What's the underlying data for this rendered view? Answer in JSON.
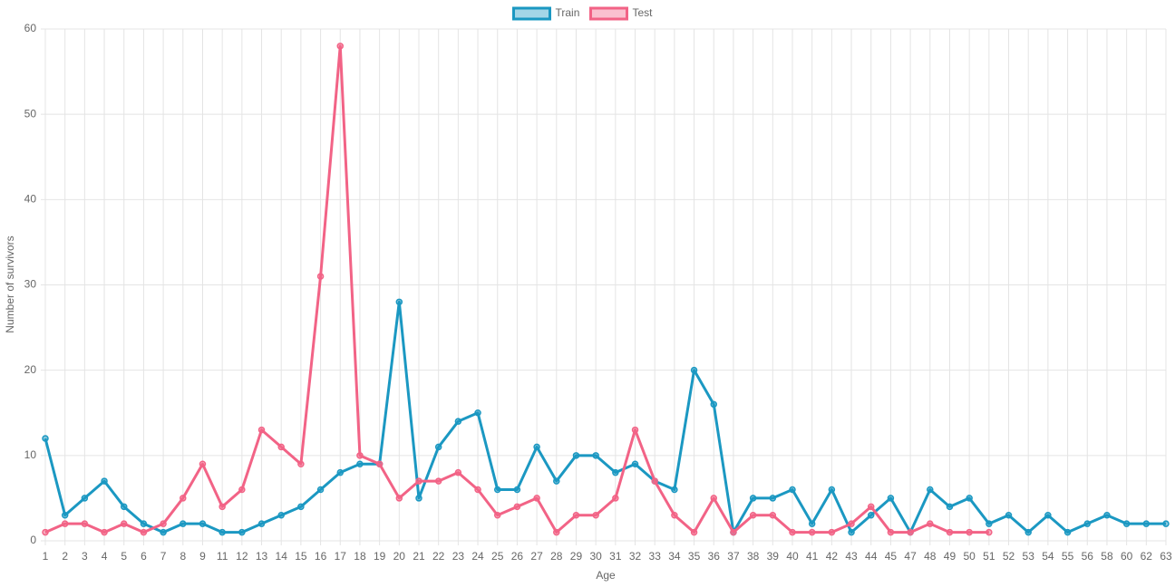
{
  "chart_data": {
    "type": "line",
    "x_label": "Age",
    "y_label": "Number of survivors",
    "categories": [
      "1",
      "2",
      "3",
      "4",
      "5",
      "6",
      "7",
      "8",
      "9",
      "11",
      "12",
      "13",
      "14",
      "15",
      "16",
      "17",
      "18",
      "19",
      "20",
      "21",
      "22",
      "23",
      "24",
      "25",
      "26",
      "27",
      "28",
      "29",
      "30",
      "31",
      "32",
      "33",
      "34",
      "35",
      "36",
      "37",
      "38",
      "39",
      "40",
      "41",
      "42",
      "43",
      "44",
      "45",
      "47",
      "48",
      "49",
      "50",
      "51",
      "52",
      "53",
      "54",
      "55",
      "56",
      "58",
      "60",
      "62",
      "63"
    ],
    "series": [
      {
        "name": "Train",
        "color": "#1b98c2",
        "values": [
          12,
          3,
          5,
          7,
          4,
          2,
          1,
          2,
          2,
          1,
          1,
          2,
          3,
          4,
          6,
          8,
          9,
          9,
          28,
          5,
          11,
          14,
          15,
          6,
          6,
          11,
          7,
          10,
          10,
          8,
          9,
          7,
          6,
          20,
          16,
          1,
          5,
          5,
          6,
          2,
          6,
          1,
          3,
          5,
          1,
          6,
          4,
          5,
          2,
          3,
          1,
          3,
          1,
          2,
          3,
          2,
          2,
          2
        ]
      },
      {
        "name": "Test",
        "color": "#f26386",
        "values": [
          1,
          2,
          2,
          1,
          2,
          1,
          2,
          5,
          9,
          4,
          6,
          13,
          11,
          9,
          31,
          58,
          10,
          9,
          5,
          7,
          7,
          8,
          6,
          3,
          4,
          5,
          1,
          3,
          3,
          5,
          13,
          7,
          3,
          1,
          5,
          1,
          3,
          3,
          1,
          1,
          1,
          2,
          4,
          1,
          1,
          2,
          1,
          1,
          1,
          null,
          null,
          null,
          null,
          null,
          null,
          null,
          null,
          null
        ]
      }
    ],
    "ylim": [
      0,
      60
    ],
    "yticks": [
      0,
      10,
      20,
      30,
      40,
      50,
      60
    ],
    "grid": true,
    "legend": "top"
  }
}
